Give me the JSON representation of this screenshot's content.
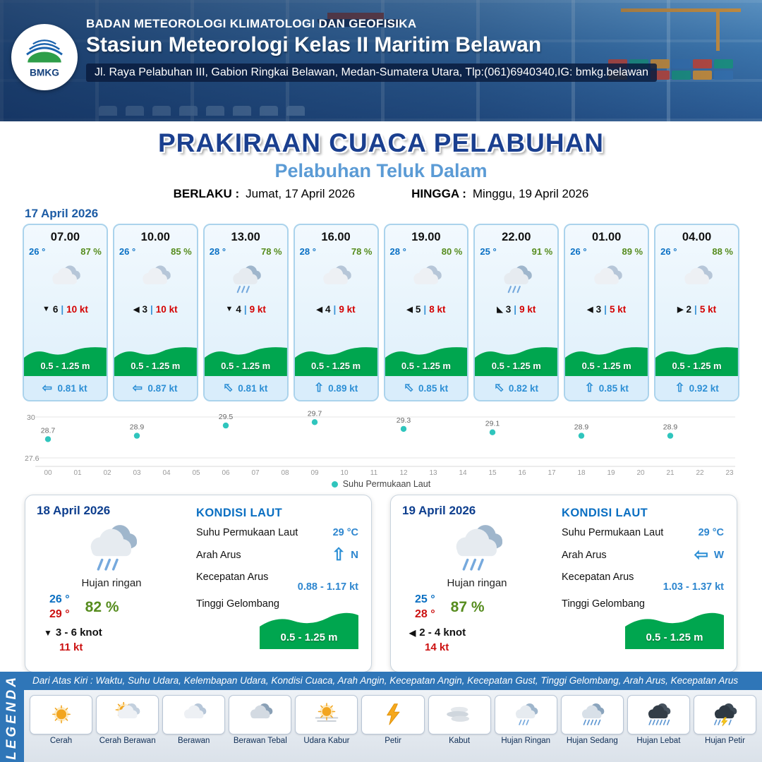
{
  "ui": {
    "wind_sep": "|"
  },
  "header": {
    "org": "BADAN METEOROLOGI KLIMATOLOGI DAN GEOFISIKA",
    "station": "Stasiun Meteorologi Kelas II Maritim Belawan",
    "address": "Jl. Raya Pelabuhan III, Gabion Ringkai Belawan, Medan-Sumatera Utara, Tlp:(061)6940340,IG: bmkg.belawan",
    "logo_text": "BMKG"
  },
  "title": {
    "main": "PRAKIRAAN CUACA PELABUHAN",
    "subtitle": "Pelabuhan Teluk Dalam",
    "valid_label": "BERLAKU :",
    "valid_value": "Jumat, 17 April 2026",
    "until_label": "HINGGA :",
    "until_value": "Minggu, 19 April 2026"
  },
  "forecast_date": "17 April 2026",
  "cards": [
    {
      "time": "07.00",
      "temp": "26 °",
      "humidity": "87 %",
      "icon": "cloud",
      "wind_arrow": "▼",
      "wind_value": "6",
      "wind_speed": "10 kt",
      "wave": "0.5 - 1.25 m",
      "current_dir": "W",
      "current_speed": "0.81 kt"
    },
    {
      "time": "10.00",
      "temp": "26 °",
      "humidity": "85 %",
      "icon": "cloud",
      "wind_arrow": "◀",
      "wind_value": "3",
      "wind_speed": "10 kt",
      "wave": "0.5 - 1.25 m",
      "current_dir": "W",
      "current_speed": "0.87 kt"
    },
    {
      "time": "13.00",
      "temp": "28 °",
      "humidity": "78 %",
      "icon": "rain-light",
      "wind_arrow": "▼",
      "wind_value": "4",
      "wind_speed": "9 kt",
      "wave": "0.5 - 1.25 m",
      "current_dir": "NW",
      "current_speed": "0.81 kt"
    },
    {
      "time": "16.00",
      "temp": "28 °",
      "humidity": "78 %",
      "icon": "cloud",
      "wind_arrow": "◀",
      "wind_value": "4",
      "wind_speed": "9 kt",
      "wave": "0.5 - 1.25 m",
      "current_dir": "N",
      "current_speed": "0.89 kt"
    },
    {
      "time": "19.00",
      "temp": "28 °",
      "humidity": "80 %",
      "icon": "cloud",
      "wind_arrow": "◀",
      "wind_value": "5",
      "wind_speed": "8 kt",
      "wave": "0.5 - 1.25 m",
      "current_dir": "NW",
      "current_speed": "0.85 kt"
    },
    {
      "time": "22.00",
      "temp": "25 °",
      "humidity": "91 %",
      "icon": "rain-light",
      "wind_arrow": "◣",
      "wind_value": "3",
      "wind_speed": "9 kt",
      "wave": "0.5 - 1.25 m",
      "current_dir": "NW",
      "current_speed": "0.82 kt"
    },
    {
      "time": "01.00",
      "temp": "26 °",
      "humidity": "89 %",
      "icon": "cloud",
      "wind_arrow": "◀",
      "wind_value": "3",
      "wind_speed": "5 kt",
      "wave": "0.5 - 1.25 m",
      "current_dir": "N",
      "current_speed": "0.85 kt"
    },
    {
      "time": "04.00",
      "temp": "26 °",
      "humidity": "88 %",
      "icon": "cloud",
      "wind_arrow": "▶",
      "wind_value": "2",
      "wind_speed": "5 kt",
      "wave": "0.5 - 1.25 m",
      "current_dir": "N",
      "current_speed": "0.92 kt"
    }
  ],
  "chart_data": {
    "type": "scatter",
    "series_label": "Suhu Permukaan Laut",
    "x": [
      0,
      3,
      6,
      9,
      12,
      15,
      18,
      21
    ],
    "values": [
      28.7,
      28.9,
      29.5,
      29.7,
      29.3,
      29.1,
      28.9,
      28.9
    ],
    "x_ticks": [
      "00",
      "01",
      "02",
      "03",
      "04",
      "05",
      "06",
      "07",
      "08",
      "09",
      "10",
      "11",
      "12",
      "13",
      "14",
      "15",
      "16",
      "17",
      "18",
      "19",
      "20",
      "21",
      "22",
      "23"
    ],
    "ylim": [
      27.6,
      30
    ],
    "unit": "°C",
    "dot_color": "#2fc5bd",
    "grid": "horizontal-minmax",
    "legend_position": "bottom"
  },
  "daily": [
    {
      "date": "18 April 2026",
      "condition": "Hujan ringan",
      "icon": "rain-light",
      "temp_min": "26 °",
      "temp_max": "29 °",
      "humidity": "82 %",
      "wind_arrow": "▼",
      "wind_range": "3  - 6 knot",
      "gust": "11 kt",
      "sea_title": "KONDISI LAUT",
      "sst_label": "Suhu Permukaan Laut",
      "sst_value": "29 °C",
      "current_label": "Arah Arus",
      "current_dir": "N",
      "speed_label": "Kecepatan Arus",
      "speed_value": "0.88  - 1.17 kt",
      "wave_label": "Tinggi Gelombang",
      "wave_value": "0.5 - 1.25 m"
    },
    {
      "date": "19 April 2026",
      "condition": "Hujan ringan",
      "icon": "rain-light",
      "temp_min": "25 °",
      "temp_max": "28 °",
      "humidity": "87 %",
      "wind_arrow": "◀",
      "wind_range": "2  - 4 knot",
      "gust": "14 kt",
      "sea_title": "KONDISI LAUT",
      "sst_label": "Suhu Permukaan Laut",
      "sst_value": "29 °C",
      "current_label": "Arah Arus",
      "current_dir": "W",
      "speed_label": "Kecepatan Arus",
      "speed_value": "1.03  - 1.37 kt",
      "wave_label": "Tinggi Gelombang",
      "wave_value": "0.5 - 1.25 m"
    }
  ],
  "legend": {
    "title": "LEGENDA",
    "caption": "Dari Atas Kiri : Waktu, Suhu Udara, Kelembapan Udara, Kondisi Cuaca, Arah Angin, Kecepatan Angin, Kecepatan Gust, Tinggi Gelombang, Arah Arus, Kecepatan Arus",
    "items": [
      {
        "label": "Cerah",
        "icon": "sun"
      },
      {
        "label": "Cerah Berawan",
        "icon": "sun-cloud"
      },
      {
        "label": "Berawan",
        "icon": "cloud"
      },
      {
        "label": "Berawan Tebal",
        "icon": "cloud-thick"
      },
      {
        "label": "Udara Kabur",
        "icon": "haze"
      },
      {
        "label": "Petir",
        "icon": "lightning"
      },
      {
        "label": "Kabut",
        "icon": "fog"
      },
      {
        "label": "Hujan Ringan",
        "icon": "rain-light"
      },
      {
        "label": "Hujan Sedang",
        "icon": "rain-medium"
      },
      {
        "label": "Hujan Lebat",
        "icon": "rain-heavy"
      },
      {
        "label": "Hujan Petir",
        "icon": "rain-lightning"
      }
    ]
  }
}
